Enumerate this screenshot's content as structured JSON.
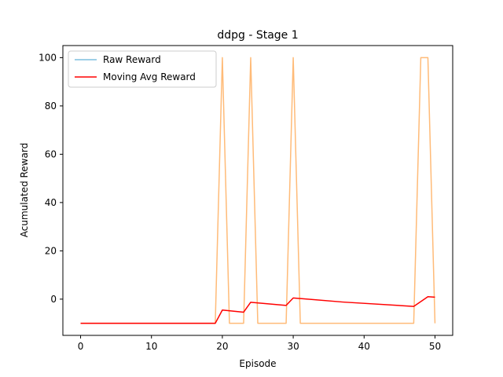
{
  "chart_data": {
    "type": "line",
    "title": "ddpg - Stage 1",
    "xlabel": "Episode",
    "ylabel": "Acumulated Reward",
    "xlim": [
      -2.5,
      52.5
    ],
    "ylim": [
      -15,
      105
    ],
    "xticks": [
      0,
      10,
      20,
      30,
      40,
      50
    ],
    "yticks": [
      0,
      20,
      40,
      60,
      80,
      100
    ],
    "grid": false,
    "legend": "top-left",
    "legend_entries": [
      "Raw Reward",
      "Moving Avg Reward"
    ],
    "series": [
      {
        "name": "Raw Reward",
        "legend_color": "#7fbfdf",
        "line_color": "#ffbb78",
        "x": [
          0,
          1,
          2,
          3,
          4,
          5,
          6,
          7,
          8,
          9,
          10,
          11,
          12,
          13,
          14,
          15,
          16,
          17,
          18,
          19,
          20,
          21,
          22,
          23,
          24,
          25,
          26,
          27,
          28,
          29,
          30,
          31,
          32,
          33,
          34,
          35,
          36,
          37,
          38,
          39,
          40,
          41,
          42,
          43,
          44,
          45,
          46,
          47,
          48,
          49,
          50
        ],
        "values": [
          -10,
          -10,
          -10,
          -10,
          -10,
          -10,
          -10,
          -10,
          -10,
          -10,
          -10,
          -10,
          -10,
          -10,
          -10,
          -10,
          -10,
          -10,
          -10,
          -10,
          100,
          -10,
          -10,
          -10,
          100,
          -10,
          -10,
          -10,
          -10,
          -10,
          100,
          -10,
          -10,
          -10,
          -10,
          -10,
          -10,
          -10,
          -10,
          -10,
          -10,
          -10,
          -10,
          -10,
          -10,
          -10,
          -10,
          -10,
          100,
          100,
          -10
        ]
      },
      {
        "name": "Moving Avg Reward",
        "color": "#ff0000",
        "x": [
          0,
          19,
          20,
          23,
          24,
          29,
          30,
          37,
          47,
          49,
          50
        ],
        "values": [
          -10,
          -10,
          -4.5,
          -5.4,
          -1.3,
          -2.6,
          0.5,
          -1.2,
          -3,
          1,
          0.8
        ]
      }
    ]
  }
}
